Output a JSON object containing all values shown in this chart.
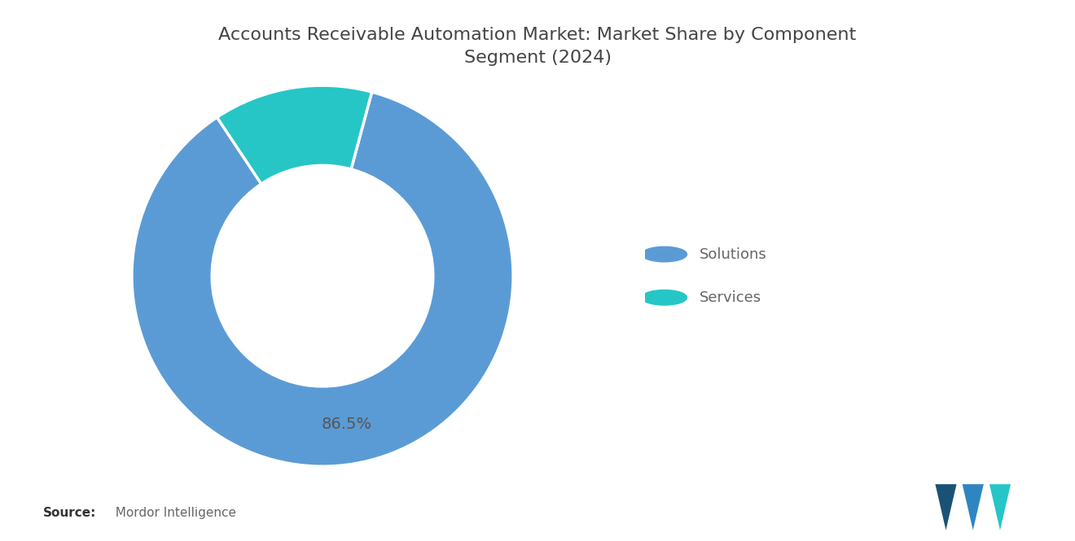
{
  "title": "Accounts Receivable Automation Market: Market Share by Component\nSegment (2024)",
  "segments": [
    "Solutions",
    "Services"
  ],
  "values": [
    86.5,
    13.5
  ],
  "colors": [
    "#5b9bd5",
    "#26c6c6"
  ],
  "label_text": "86.5%",
  "label_color": "#555555",
  "legend_labels": [
    "Solutions",
    "Services"
  ],
  "source_bold": "Source:",
  "source_normal": "  Mordor Intelligence",
  "background_color": "#ffffff",
  "title_color": "#444444",
  "legend_text_color": "#666666",
  "start_angle": 75
}
